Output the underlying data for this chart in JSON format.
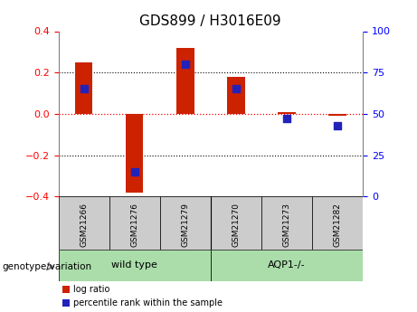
{
  "title": "GDS899 / H3016E09",
  "samples": [
    "GSM21266",
    "GSM21276",
    "GSM21279",
    "GSM21270",
    "GSM21273",
    "GSM21282"
  ],
  "groups": [
    {
      "name": "wild type",
      "start": 0,
      "end": 2
    },
    {
      "name": "AQP1-/-",
      "start": 3,
      "end": 5
    }
  ],
  "log_ratio": [
    0.25,
    -0.38,
    0.32,
    0.18,
    0.01,
    -0.01
  ],
  "percentile_rank": [
    65,
    15,
    80,
    65,
    47,
    43
  ],
  "bar_color": "#cc2200",
  "percentile_color": "#2222bb",
  "ylim_left": [
    -0.4,
    0.4
  ],
  "ylim_right": [
    0,
    100
  ],
  "group_bg": "#aaddaa",
  "sample_bg": "#cccccc",
  "title_fontsize": 11,
  "tick_fontsize": 8,
  "bar_width": 0.35,
  "percentile_square_size": 35,
  "genotype_label": "genotype/variation",
  "legend_items": [
    "log ratio",
    "percentile rank within the sample"
  ]
}
